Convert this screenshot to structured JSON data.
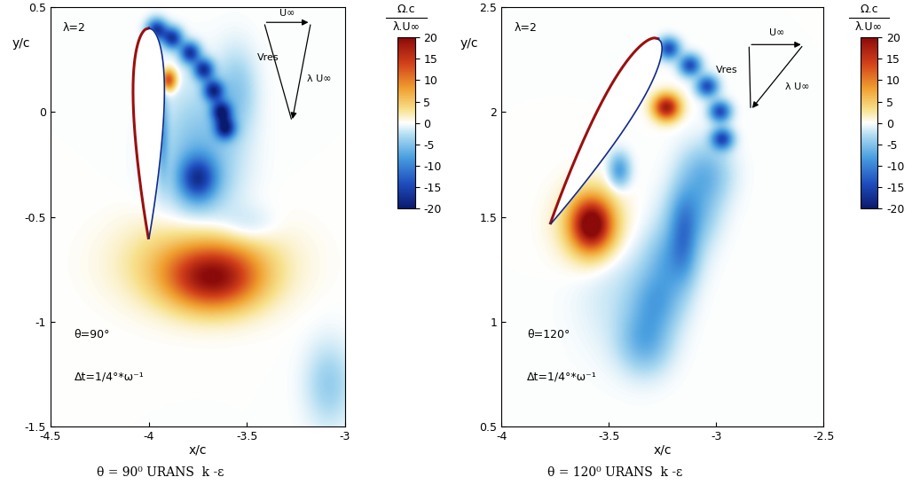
{
  "chart_data": [
    {
      "type": "vorticity_field",
      "caption": "θ = 90⁰ URANS  k -ε",
      "xlabel": "x/c",
      "ylabel": "y/c",
      "xlim": [
        -4.5,
        -3
      ],
      "ylim": [
        -1.5,
        0.5
      ],
      "xticks": [
        -4.5,
        -4,
        -3.5,
        -3
      ],
      "yticks": [
        -1.5,
        -1,
        -0.5,
        0,
        0.5
      ],
      "annotations": {
        "lambda": "λ=2",
        "theta": "θ=90°",
        "dt": "Δt=1/4°*ω⁻¹",
        "u": "U∞",
        "v": "Vres",
        "lu": "λ U∞"
      },
      "colorbar": {
        "numerator": "Ω.c",
        "denominator": "λ.U∞",
        "range": [
          -20,
          20
        ],
        "ticks": [
          -20,
          -15,
          -10,
          -5,
          0,
          5,
          10,
          15,
          20
        ]
      },
      "airfoil": {
        "leading_edge": [
          -4.0,
          0.4
        ],
        "trailing_edge": [
          -4.0,
          -0.6
        ],
        "thickness": 0.16
      },
      "vortices": [
        {
          "x": -3.67,
          "y": -0.8,
          "rx": 0.22,
          "ry": 0.14,
          "value": 14
        },
        {
          "x": -3.72,
          "y": -0.72,
          "rx": 0.35,
          "ry": 0.2,
          "value": 8
        },
        {
          "x": -3.75,
          "y": -0.32,
          "rx": 0.09,
          "ry": 0.1,
          "value": -12
        },
        {
          "x": -3.74,
          "y": -0.25,
          "rx": 0.2,
          "ry": 0.35,
          "value": -6
        },
        {
          "x": -3.96,
          "y": 0.39,
          "rx": 0.05,
          "ry": 0.05,
          "value": -16
        },
        {
          "x": -3.88,
          "y": 0.35,
          "rx": 0.05,
          "ry": 0.05,
          "value": -16
        },
        {
          "x": -3.79,
          "y": 0.28,
          "rx": 0.05,
          "ry": 0.05,
          "value": -16
        },
        {
          "x": -3.72,
          "y": 0.2,
          "rx": 0.05,
          "ry": 0.05,
          "value": -16
        },
        {
          "x": -3.67,
          "y": 0.1,
          "rx": 0.05,
          "ry": 0.05,
          "value": -16
        },
        {
          "x": -3.63,
          "y": 0.0,
          "rx": 0.05,
          "ry": 0.05,
          "value": -16
        },
        {
          "x": -3.61,
          "y": -0.08,
          "rx": 0.05,
          "ry": 0.05,
          "value": -16
        },
        {
          "x": -3.55,
          "y": 0.1,
          "rx": 0.1,
          "ry": 0.2,
          "value": -4
        },
        {
          "x": -3.9,
          "y": 0.15,
          "rx": 0.04,
          "ry": 0.05,
          "value": 14
        },
        {
          "x": -3.93,
          "y": -0.1,
          "rx": 0.03,
          "ry": 0.2,
          "value": -6
        },
        {
          "x": -3.08,
          "y": -1.3,
          "rx": 0.12,
          "ry": 0.2,
          "value": -4
        },
        {
          "x": -3.5,
          "y": -0.55,
          "rx": 0.15,
          "ry": 0.1,
          "value": -3
        }
      ]
    },
    {
      "type": "vorticity_field",
      "caption": "θ = 120⁰ URANS  k -ε",
      "xlabel": "x/c",
      "ylabel": "y/c",
      "xlim": [
        -4,
        -2.5
      ],
      "ylim": [
        0.5,
        2.5
      ],
      "xticks": [
        -4,
        -3.5,
        -3,
        -2.5
      ],
      "yticks": [
        0.5,
        1,
        1.5,
        2,
        2.5
      ],
      "annotations": {
        "lambda": "λ=2",
        "theta": "θ=120°",
        "dt": "Δt=1/4°*ω⁻¹",
        "u": "U∞",
        "v": "Vres",
        "lu": "λ U∞"
      },
      "colorbar": {
        "numerator": "Ω.c",
        "denominator": "λ.U∞",
        "range": [
          -20,
          20
        ],
        "ticks": [
          -20,
          -15,
          -10,
          -5,
          0,
          5,
          10,
          15,
          20
        ]
      },
      "airfoil": {
        "leading_edge": [
          -3.27,
          2.35
        ],
        "trailing_edge": [
          -3.77,
          1.47
        ],
        "thickness": 0.16
      },
      "vortices": [
        {
          "x": -3.58,
          "y": 1.46,
          "rx": 0.09,
          "ry": 0.12,
          "value": 18
        },
        {
          "x": -3.58,
          "y": 1.46,
          "rx": 0.15,
          "ry": 0.18,
          "value": 6
        },
        {
          "x": -3.23,
          "y": 2.02,
          "rx": 0.06,
          "ry": 0.06,
          "value": 18
        },
        {
          "x": -3.22,
          "y": 2.3,
          "rx": 0.05,
          "ry": 0.05,
          "value": -14
        },
        {
          "x": -3.12,
          "y": 2.22,
          "rx": 0.05,
          "ry": 0.05,
          "value": -14
        },
        {
          "x": -3.04,
          "y": 2.12,
          "rx": 0.05,
          "ry": 0.05,
          "value": -14
        },
        {
          "x": -2.98,
          "y": 2.0,
          "rx": 0.05,
          "ry": 0.05,
          "value": -14
        },
        {
          "x": -2.97,
          "y": 1.87,
          "rx": 0.05,
          "ry": 0.05,
          "value": -14
        },
        {
          "x": -3.05,
          "y": 1.7,
          "rx": 0.12,
          "ry": 0.15,
          "value": -6
        },
        {
          "x": -3.12,
          "y": 1.5,
          "rx": 0.12,
          "ry": 0.15,
          "value": -6
        },
        {
          "x": -3.2,
          "y": 1.3,
          "rx": 0.12,
          "ry": 0.15,
          "value": -6
        },
        {
          "x": -3.27,
          "y": 1.1,
          "rx": 0.12,
          "ry": 0.15,
          "value": -6
        },
        {
          "x": -3.33,
          "y": 0.9,
          "rx": 0.12,
          "ry": 0.15,
          "value": -6
        },
        {
          "x": -3.15,
          "y": 1.4,
          "rx": 0.06,
          "ry": 0.2,
          "value": -5
        },
        {
          "x": -3.45,
          "y": 1.15,
          "rx": 0.2,
          "ry": 0.3,
          "value": -2
        },
        {
          "x": -3.45,
          "y": 1.72,
          "rx": 0.05,
          "ry": 0.08,
          "value": -8
        }
      ]
    }
  ]
}
